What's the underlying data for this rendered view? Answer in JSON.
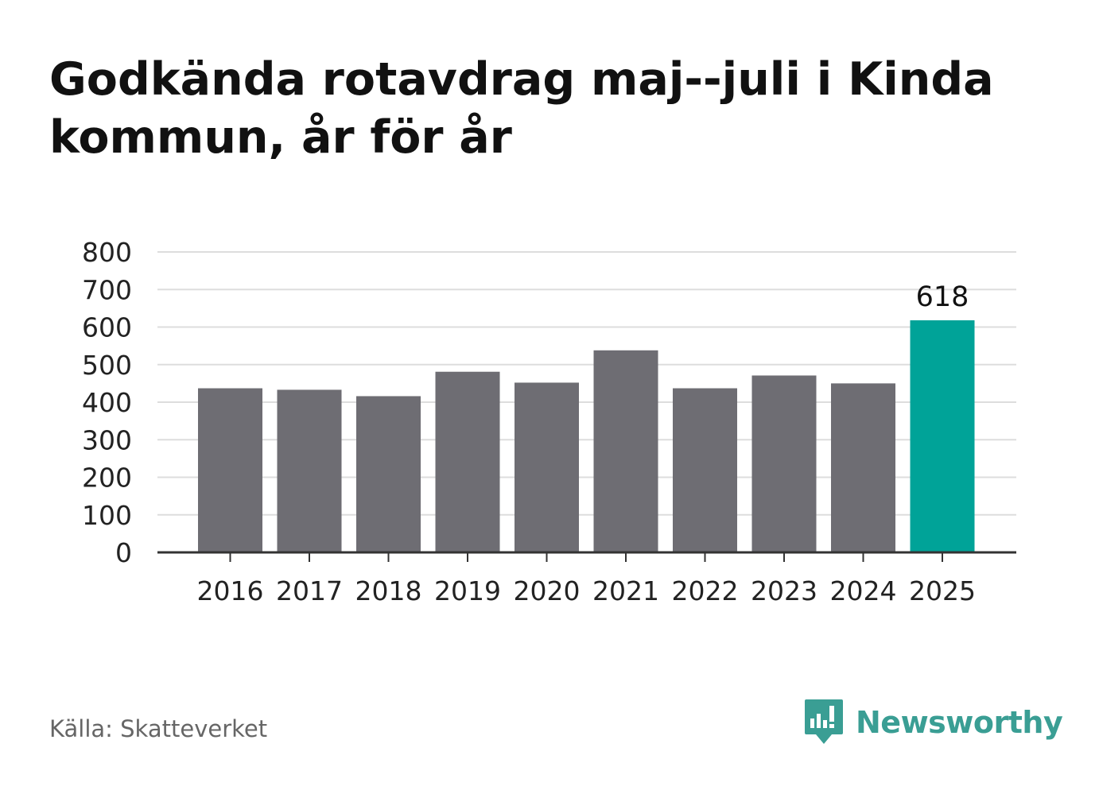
{
  "title": "Godkända rotavdrag maj--juli i Kinda kommun, år för år",
  "source": "Källa: Skatteverket",
  "brand": {
    "name": "Newsworthy",
    "icon": "newsworthy-logo-icon",
    "color": "#3a9e94"
  },
  "colors": {
    "bar": "#6e6d73",
    "highlight": "#00a398",
    "grid": "#dddddd",
    "axis": "#333333"
  },
  "chart_data": {
    "type": "bar",
    "categories": [
      "2016",
      "2017",
      "2018",
      "2019",
      "2020",
      "2021",
      "2022",
      "2023",
      "2024",
      "2025"
    ],
    "values": [
      437,
      433,
      416,
      481,
      452,
      538,
      437,
      471,
      450,
      618
    ],
    "highlight_index": 9,
    "data_labels": [
      {
        "index": 9,
        "text": "618"
      }
    ],
    "ylim": [
      0,
      800
    ],
    "yticks": [
      0,
      100,
      200,
      300,
      400,
      500,
      600,
      700,
      800
    ],
    "grid": true,
    "xlabel": "",
    "ylabel": ""
  }
}
